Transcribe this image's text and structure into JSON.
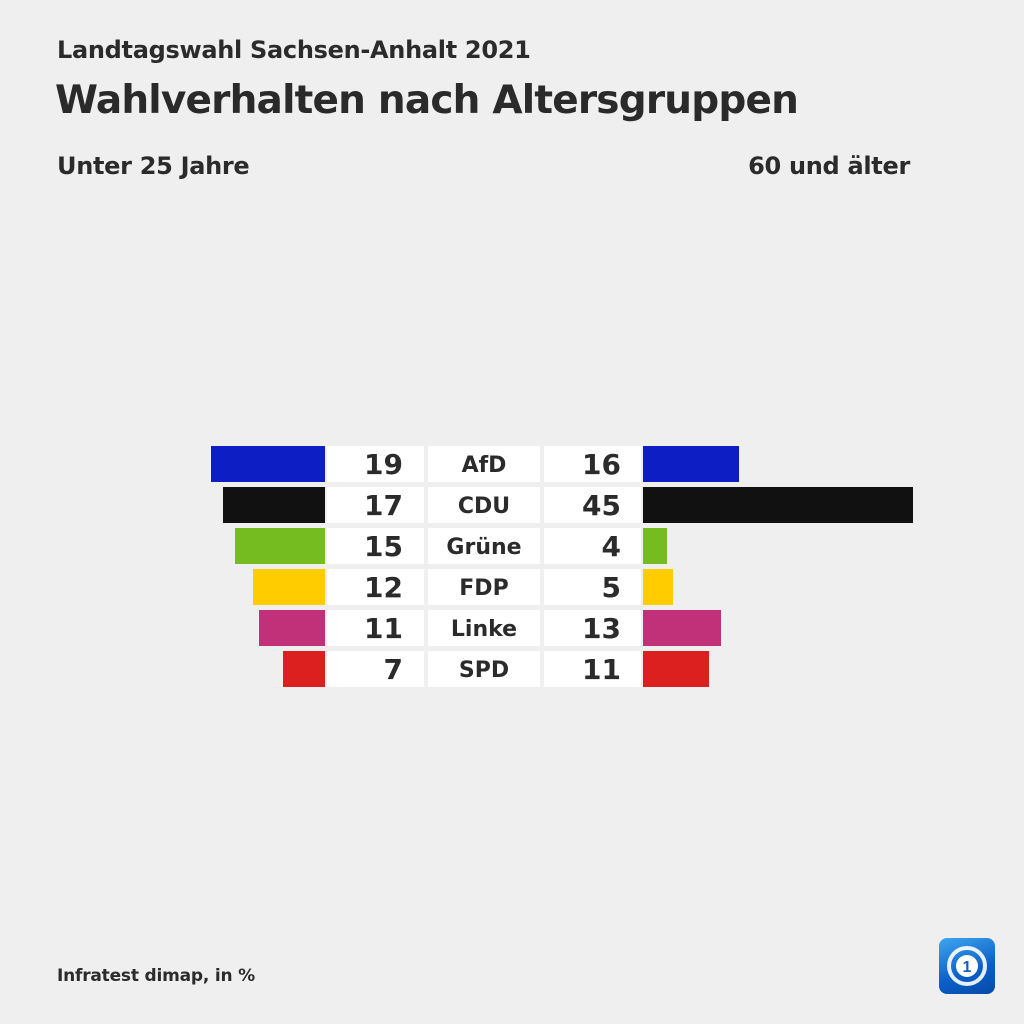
{
  "header": {
    "kicker": "Landtagswahl Sachsen-Anhalt 2021",
    "title": "Wahlverhalten nach Altersgruppen"
  },
  "groups": {
    "left": "Unter 25 Jahre",
    "right": "60 und älter"
  },
  "source": "Infratest dimap, in %",
  "logo": {
    "icon": "ard-tagesschau-logo-icon",
    "text": "1"
  },
  "colors": {
    "background": "#f0efef",
    "cell": "#ffffff"
  },
  "chart_data": {
    "type": "bar",
    "layout": "butterfly",
    "unit": "%",
    "categories": [
      "AfD",
      "CDU",
      "Grüne",
      "FDP",
      "Linke",
      "SPD"
    ],
    "colors": [
      "#0c1ec4",
      "#111111",
      "#74bc1f",
      "#ffcc00",
      "#c1317a",
      "#dc1f1f"
    ],
    "series": [
      {
        "name": "Unter 25 Jahre",
        "values": [
          19,
          17,
          15,
          12,
          11,
          7
        ]
      },
      {
        "name": "60 und älter",
        "values": [
          16,
          45,
          4,
          5,
          13,
          11
        ]
      }
    ]
  }
}
